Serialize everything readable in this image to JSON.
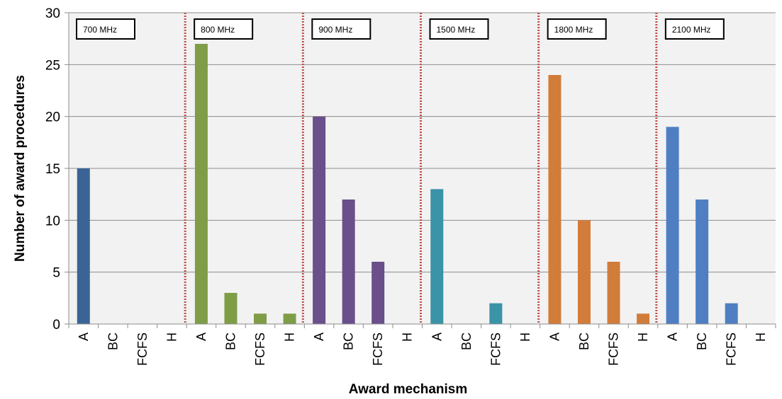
{
  "chart_data": {
    "type": "bar",
    "title": "",
    "xlabel": "Award mechanism",
    "ylabel": "Number of award procedures",
    "ylim": [
      0,
      30
    ],
    "yticks": [
      0,
      5,
      10,
      15,
      20,
      25,
      30
    ],
    "grid": true,
    "categories": [
      "A",
      "BC",
      "FCFS",
      "H"
    ],
    "groups": [
      {
        "name": "700 MHz",
        "color": "#3b6496",
        "values": [
          15,
          0,
          0,
          0
        ]
      },
      {
        "name": "800 MHz",
        "color": "#7f9d47",
        "values": [
          27,
          3,
          1,
          1
        ]
      },
      {
        "name": "900 MHz",
        "color": "#6a4f8a",
        "values": [
          20,
          12,
          6,
          0
        ]
      },
      {
        "name": "1500 MHz",
        "color": "#3a93a6",
        "values": [
          13,
          0,
          2,
          0
        ]
      },
      {
        "name": "1800 MHz",
        "color": "#d27c3a",
        "values": [
          24,
          10,
          6,
          1
        ]
      },
      {
        "name": "2100 MHz",
        "color": "#4f7fc2",
        "values": [
          19,
          12,
          2,
          0
        ]
      }
    ],
    "plot_background": "#f2f2f2",
    "gridline_color": "#8c8c8c",
    "separator_color": "#c0504d"
  }
}
